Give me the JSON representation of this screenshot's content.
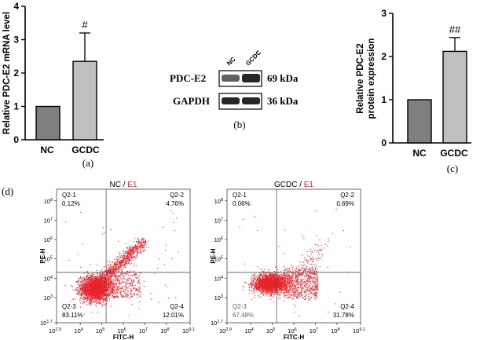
{
  "chart_data": [
    {
      "type": "bar",
      "panel_label": "(a)",
      "ylabel": "Relative PDC-E2 mRNA level",
      "ylim": [
        0,
        4
      ],
      "yticks": [
        "0",
        "1",
        "2",
        "3",
        "4"
      ],
      "categories": [
        "NC",
        "GCDC"
      ],
      "values": [
        1.0,
        2.35
      ],
      "errors": [
        0,
        0.85
      ],
      "annotations": [
        "",
        "#"
      ],
      "colors": [
        "#7f7f7f",
        "#bfbfbf"
      ]
    },
    {
      "type": "bar",
      "panel_label": "(c)",
      "ylabel_lines": [
        "Relative PDC-E2",
        "protein expression"
      ],
      "ylim": [
        0,
        3
      ],
      "yticks": [
        "0",
        "1",
        "2",
        "3"
      ],
      "categories": [
        "NC",
        "GCDC"
      ],
      "values": [
        1.0,
        2.12
      ],
      "errors": [
        0,
        0.32
      ],
      "annotations": [
        "",
        "##"
      ],
      "colors": [
        "#7f7f7f",
        "#bfbfbf"
      ]
    },
    {
      "type": "scatter",
      "panel_label": "(d)",
      "title_prefix": "NC / ",
      "title_suffix": "E1",
      "xlabel": "FITC-H",
      "ylabel": "PE-H",
      "quadrants": [
        {
          "name": "Q2-1",
          "value": "0.12%"
        },
        {
          "name": "Q2-2",
          "value": "4.76%"
        },
        {
          "name": "Q2-3",
          "value": "83.11%"
        },
        {
          "name": "Q2-4",
          "value": "12.01%"
        }
      ],
      "x_ticks": [
        {
          "base": "10",
          "exp": "2.9",
          "log": 2.9
        },
        {
          "base": "10",
          "exp": "4",
          "log": 4
        },
        {
          "base": "10",
          "exp": "5",
          "log": 5
        },
        {
          "base": "10",
          "exp": "6",
          "log": 6
        },
        {
          "base": "10",
          "exp": "7",
          "log": 7
        },
        {
          "base": "10",
          "exp": "8",
          "log": 8
        },
        {
          "base": "10",
          "exp": "9.1",
          "log": 9.1
        }
      ],
      "y_ticks": [
        {
          "base": "10",
          "exp": "1.7",
          "log": 1.7
        },
        {
          "base": "10",
          "exp": "3",
          "log": 3
        },
        {
          "base": "10",
          "exp": "4",
          "log": 4
        },
        {
          "base": "10",
          "exp": "5",
          "log": 5
        },
        {
          "base": "10",
          "exp": "6",
          "log": 6
        },
        {
          "base": "10",
          "exp": "7",
          "log": 7
        },
        {
          "base": "10",
          "exp": "8",
          "log": 8
        }
      ],
      "xlim_log": [
        2.9,
        9.1
      ],
      "ylim_log": [
        1.7,
        8.6
      ],
      "gate_x_log": 5.2,
      "gate_y_log": 4.3,
      "point_color": "#e8232b"
    },
    {
      "type": "scatter",
      "panel_label": "",
      "title_prefix": "GCDC / ",
      "title_suffix": "E1",
      "xlabel": "FITC-H",
      "ylabel": "PE-H",
      "quadrants": [
        {
          "name": "Q2-1",
          "value": "0.06%"
        },
        {
          "name": "Q2-2",
          "value": "0.69%"
        },
        {
          "name": "Q2-3",
          "value": "67.48%"
        },
        {
          "name": "Q2-4",
          "value": "31.78%"
        }
      ],
      "x_ticks": [
        {
          "base": "10",
          "exp": "2.9",
          "log": 2.9
        },
        {
          "base": "10",
          "exp": "4",
          "log": 4
        },
        {
          "base": "10",
          "exp": "5",
          "log": 5
        },
        {
          "base": "10",
          "exp": "6",
          "log": 6
        },
        {
          "base": "10",
          "exp": "7",
          "log": 7
        },
        {
          "base": "10",
          "exp": "8",
          "log": 8
        },
        {
          "base": "10",
          "exp": "9.1",
          "log": 9.1
        }
      ],
      "y_ticks": [
        {
          "base": "10",
          "exp": "1.7",
          "log": 1.7
        },
        {
          "base": "10",
          "exp": "3",
          "log": 3
        },
        {
          "base": "10",
          "exp": "4",
          "log": 4
        },
        {
          "base": "10",
          "exp": "5",
          "log": 5
        },
        {
          "base": "10",
          "exp": "6",
          "log": 6
        },
        {
          "base": "10",
          "exp": "7",
          "log": 7
        },
        {
          "base": "10",
          "exp": "8",
          "log": 8
        }
      ],
      "xlim_log": [
        2.9,
        9.1
      ],
      "ylim_log": [
        1.7,
        8.6
      ],
      "gate_x_log": 5.2,
      "gate_y_log": 4.3,
      "point_color": "#e8232b"
    }
  ],
  "western_blot": {
    "panel_label": "(b)",
    "lane_labels": [
      "NC",
      "GCDC"
    ],
    "rows": [
      {
        "protein": "PDC-E2",
        "size": "69 kDa",
        "intensity": [
          0.62,
          0.85
        ]
      },
      {
        "protein": "GAPDH",
        "size": "36 kDa",
        "intensity": [
          0.85,
          0.85
        ]
      }
    ]
  }
}
